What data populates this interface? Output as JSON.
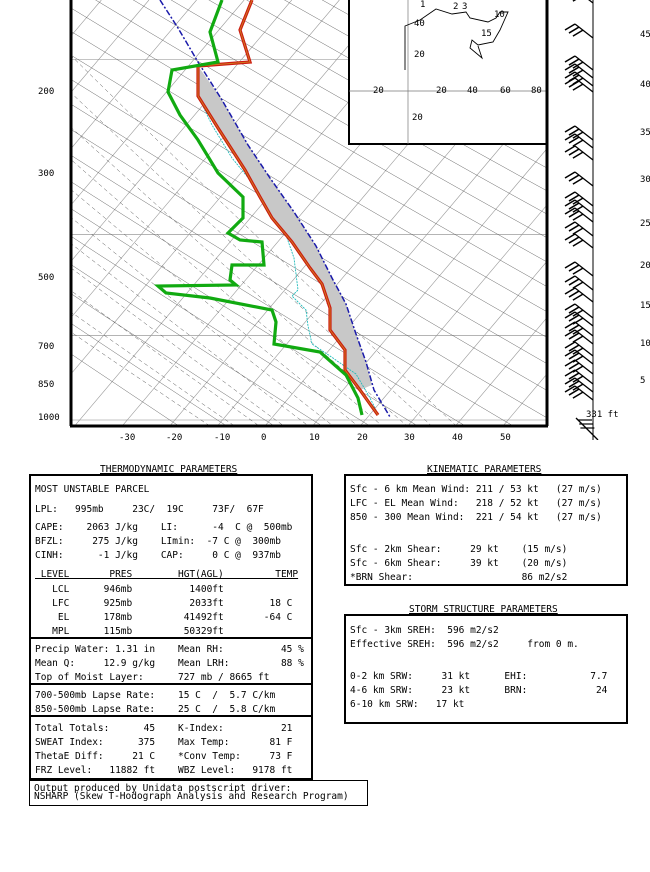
{
  "skewt": {
    "pressure_labels": [
      "200",
      "300",
      "500",
      "700",
      "850",
      "1000"
    ],
    "temp_labels": [
      "-30",
      "-20",
      "-10",
      "0",
      "10",
      "20",
      "30",
      "40",
      "50"
    ],
    "height_labels": [
      "45",
      "40",
      "35",
      "30",
      "25",
      "20",
      "15",
      "10",
      "5"
    ],
    "surface_label": "331 ft",
    "colors": {
      "temperature": "#cc1a10",
      "dewpoint": "#11aa11",
      "parcel": "#1a1aaa",
      "wetbulb": "#22bbbb",
      "cape": "#c8c8c8"
    }
  },
  "hodograph": {
    "ring_labels": [
      "40",
      "20",
      "20",
      "20",
      "40",
      "60",
      "80",
      "20"
    ],
    "point_labels": [
      "1",
      "2",
      "3",
      "10",
      "15"
    ]
  },
  "thermo": {
    "title": "THERMODYNAMIC PARAMETERS",
    "parcel": "MOST UNSTABLE PARCEL",
    "lpl": "LPL:   995mb     23C/  19C     73F/  67F",
    "cape": "CAPE:    2063 J/kg    LI:      -4  C @  500mb",
    "bfzl": "BFZL:     275 J/kg    LImin:  -7 C @  300mb",
    "cinh": "CINH:      -1 J/kg    CAP:     0 C @  937mb",
    "level_header": " LEVEL       PRES        HGT(AGL)         TEMP",
    "lcl": "   LCL      946mb          1400ft",
    "lfc": "   LFC      925mb          2033ft        18 C",
    "el": "    EL      178mb         41492ft       -64 C",
    "mpl": "   MPL      115mb         50329ft",
    "precip": "Precip Water: 1.31 in    Mean RH:          45 %",
    "meanq": "Mean Q:     12.9 g/kg    Mean LRH:         88 %",
    "moist": "Top of Moist Layer:      727 mb / 8665 ft",
    "lapse1": "700-500mb Lapse Rate:    15 C  /  5.7 C/km",
    "lapse2": "850-500mb Lapse Rate:    25 C  /  5.8 C/km",
    "tt": "Total Totals:      45    K-Index:          21",
    "sweat": "SWEAT Index:      375    Max Temp:       81 F",
    "thetae": "ThetaE Diff:     21 C    *Conv Temp:     73 F",
    "frz": "FRZ Level:   11882 ft    WBZ Level:   9178 ft",
    "footer1": "Output produced by Unidata postscript driver:",
    "footer2": "NSHARP (Skew T-Hodograph Analysis and Research Program)"
  },
  "kinematic": {
    "title": "KINEMATIC PARAMETERS",
    "l1": "Sfc - 6 km Mean Wind: 211 / 53 kt   (27 m/s)",
    "l2": "LFC - EL Mean Wind:   218 / 52 kt   (27 m/s)",
    "l3": "850 - 300 Mean Wind:  221 / 54 kt   (27 m/s)",
    "l4": "Sfc - 2km Shear:     29 kt    (15 m/s)",
    "l5": "Sfc - 6km Shear:     39 kt    (20 m/s)",
    "l6": "*BRN Shear:                   86 m2/s2"
  },
  "storm": {
    "title": "STORM STRUCTURE PARAMETERS",
    "l1": "Sfc - 3km SREH:  596 m2/s2",
    "l2": "Effective SREH:  596 m2/s2     from 0 m.",
    "l3": "0-2 km SRW:     31 kt      EHI:           7.7",
    "l4": "4-6 km SRW:     23 kt      BRN:            24",
    "l5": "6-10 km SRW:   17 kt"
  }
}
